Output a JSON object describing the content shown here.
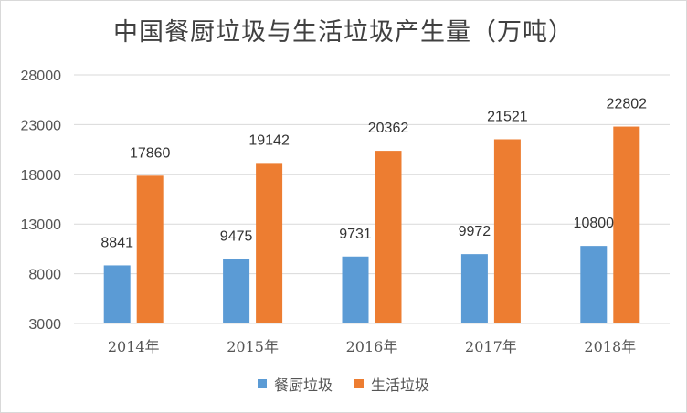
{
  "chart_data": {
    "type": "bar",
    "title": "中国餐厨垃圾与生活垃圾产生量（万吨）",
    "xlabel": "",
    "ylabel": "",
    "categories": [
      "2014年",
      "2015年",
      "2016年",
      "2017年",
      "2018年"
    ],
    "series": [
      {
        "name": "餐厨垃圾",
        "values": [
          8841,
          9475,
          9731,
          9972,
          10800
        ],
        "color": "#5b9bd5"
      },
      {
        "name": "生活垃圾",
        "values": [
          17860,
          19142,
          20362,
          21521,
          22802
        ],
        "color": "#ed7d31"
      }
    ],
    "ylim": [
      3000,
      28000
    ],
    "yticks": [
      3000,
      8000,
      13000,
      18000,
      23000,
      28000
    ],
    "grid": true,
    "legend": "bottom",
    "data_labels": true
  }
}
